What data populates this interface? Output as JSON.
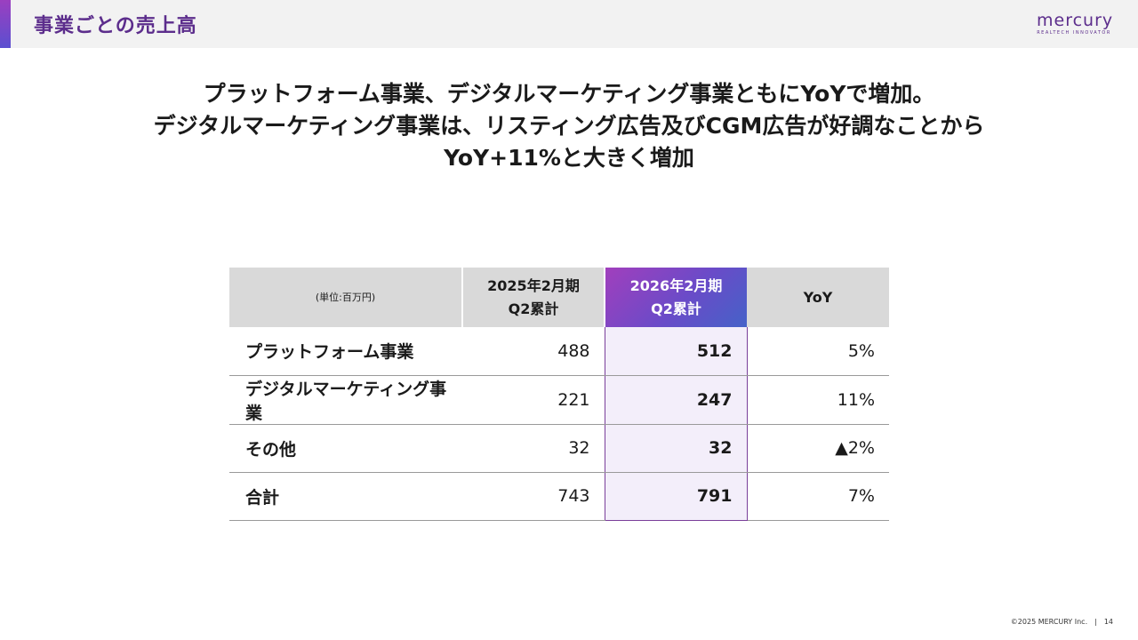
{
  "header": {
    "title": "事業ごとの売上高",
    "logo_text": "mercury",
    "logo_tagline": "REALTECH INNOVATOR"
  },
  "headline": [
    "プラットフォーム事業、デジタルマーケティング事業ともにYoYで増加。",
    "デジタルマーケティング事業は、リスティング広告及びCGM広告が好調なことから",
    "YoY+11%と大きく増加"
  ],
  "colors": {
    "brand": "#5c2d8c",
    "highlight_gradient_start": "#a13fbd",
    "highlight_gradient_end": "#4562c8",
    "highlight_cell_bg": "#f3eefa"
  },
  "table": {
    "unit_label": "(単位:百万円)",
    "col_prev_line1": "2025年2月期",
    "col_prev_line2": "Q2累計",
    "col_curr_line1": "2026年2月期",
    "col_curr_line2": "Q2累計",
    "col_yoy": "YoY",
    "rows": [
      {
        "label": "プラットフォーム事業",
        "prev": "488",
        "curr": "512",
        "yoy": "5%"
      },
      {
        "label": "デジタルマーケティング事業",
        "prev": "221",
        "curr": "247",
        "yoy": "11%"
      },
      {
        "label": "その他",
        "prev": "32",
        "curr": "32",
        "yoy": "▲2%"
      },
      {
        "label": "合計",
        "prev": "743",
        "curr": "791",
        "yoy": "7%"
      }
    ]
  },
  "footer": {
    "copyright": "©2025 MERCURY Inc.",
    "separator": "|",
    "page": "14"
  }
}
